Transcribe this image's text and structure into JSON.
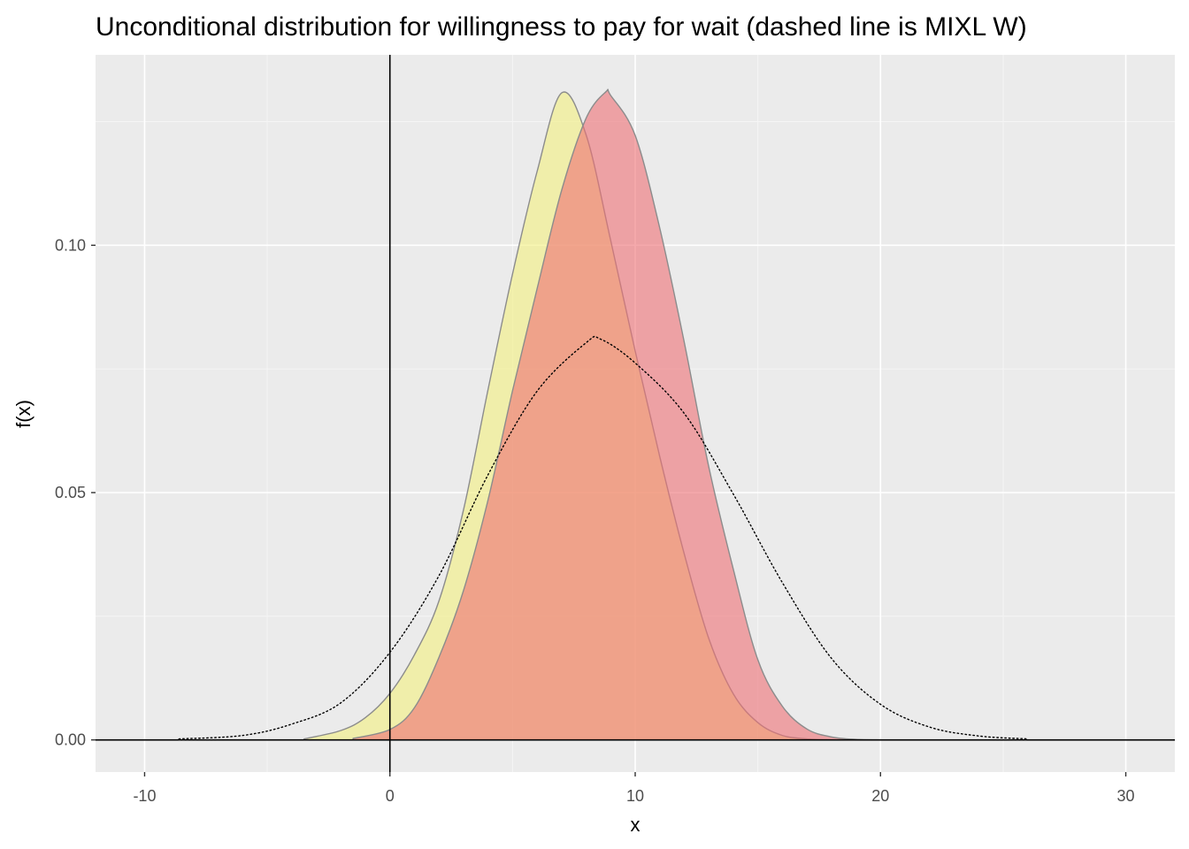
{
  "chart_data": {
    "type": "area",
    "title": "Unconditional distribution for willingness to pay for wait (dashed line is MIXL W)",
    "xlabel": "x",
    "ylabel": "f(x)",
    "xlim": [
      -12,
      32
    ],
    "ylim": [
      -0.0065,
      0.1385
    ],
    "x_ticks": [
      -10,
      0,
      10,
      20,
      30
    ],
    "x_tick_labels": [
      "-10",
      "0",
      "10",
      "20",
      "30"
    ],
    "y_ticks": [
      0.0,
      0.05,
      0.1
    ],
    "y_tick_labels": [
      "0.00",
      "0.05",
      "0.10"
    ],
    "grid": true,
    "reference_lines": {
      "vline_x": 0,
      "hline_y": 0
    },
    "series": [
      {
        "style": "filled-area",
        "fill": "#f3f07f",
        "fill_opacity": 0.6,
        "stroke": "#8c8c8c",
        "peak_x": 7.2,
        "peak_y": 0.131,
        "support": [
          -4,
          18.5
        ],
        "x": [
          -3.5,
          -2,
          -1,
          0,
          1,
          2,
          3,
          4,
          5,
          6,
          7,
          8,
          9,
          10,
          11,
          12,
          13,
          14,
          15,
          16,
          17,
          18
        ],
        "y": [
          0.0002,
          0.0019,
          0.0045,
          0.0094,
          0.0172,
          0.0281,
          0.0465,
          0.0708,
          0.0942,
          0.1149,
          0.1308,
          0.1223,
          0.101,
          0.0786,
          0.0573,
          0.0376,
          0.0205,
          0.0093,
          0.0035,
          0.0009,
          0.0002,
          0.0
        ]
      },
      {
        "style": "filled-area",
        "fill": "#ef6f74",
        "fill_opacity": 0.6,
        "stroke": "#8c8c8c",
        "peak_x": 8.8,
        "peak_y": 0.131,
        "support": [
          -2,
          20
        ],
        "x": [
          -1.5,
          0,
          1,
          2,
          3,
          4,
          5,
          6,
          7,
          8,
          8.8,
          9,
          10,
          11,
          12,
          13,
          14,
          15,
          16,
          17,
          18,
          19,
          20
        ],
        "y": [
          0.0003,
          0.0021,
          0.0065,
          0.0167,
          0.0302,
          0.0485,
          0.0706,
          0.0912,
          0.1111,
          0.1257,
          0.131,
          0.1303,
          0.1222,
          0.1035,
          0.0804,
          0.0552,
          0.0345,
          0.0162,
          0.0068,
          0.0022,
          0.0006,
          0.0001,
          0.0
        ]
      },
      {
        "style": "dotted-line",
        "name": "MIXL W",
        "stroke": "#000000",
        "peak_x": 8.6,
        "peak_y": 0.081,
        "support": [
          -8.6,
          26
        ],
        "x": [
          -8.6,
          -6,
          -4,
          -2,
          0,
          2,
          4,
          6,
          8,
          8.6,
          10,
          12,
          14,
          16,
          18,
          20,
          22,
          24,
          26
        ],
        "y": [
          0.0002,
          0.0009,
          0.0032,
          0.0075,
          0.0177,
          0.0332,
          0.0536,
          0.0705,
          0.0803,
          0.081,
          0.0762,
          0.066,
          0.0497,
          0.0318,
          0.0165,
          0.0072,
          0.0026,
          0.0008,
          0.0002
        ]
      }
    ]
  },
  "colors": {
    "panel_background": "#ebebeb",
    "grid_major": "#ffffff",
    "grid_minor": "#f5f5f5",
    "tick_label": "#4d4d4d",
    "reference_line": "#000000"
  }
}
